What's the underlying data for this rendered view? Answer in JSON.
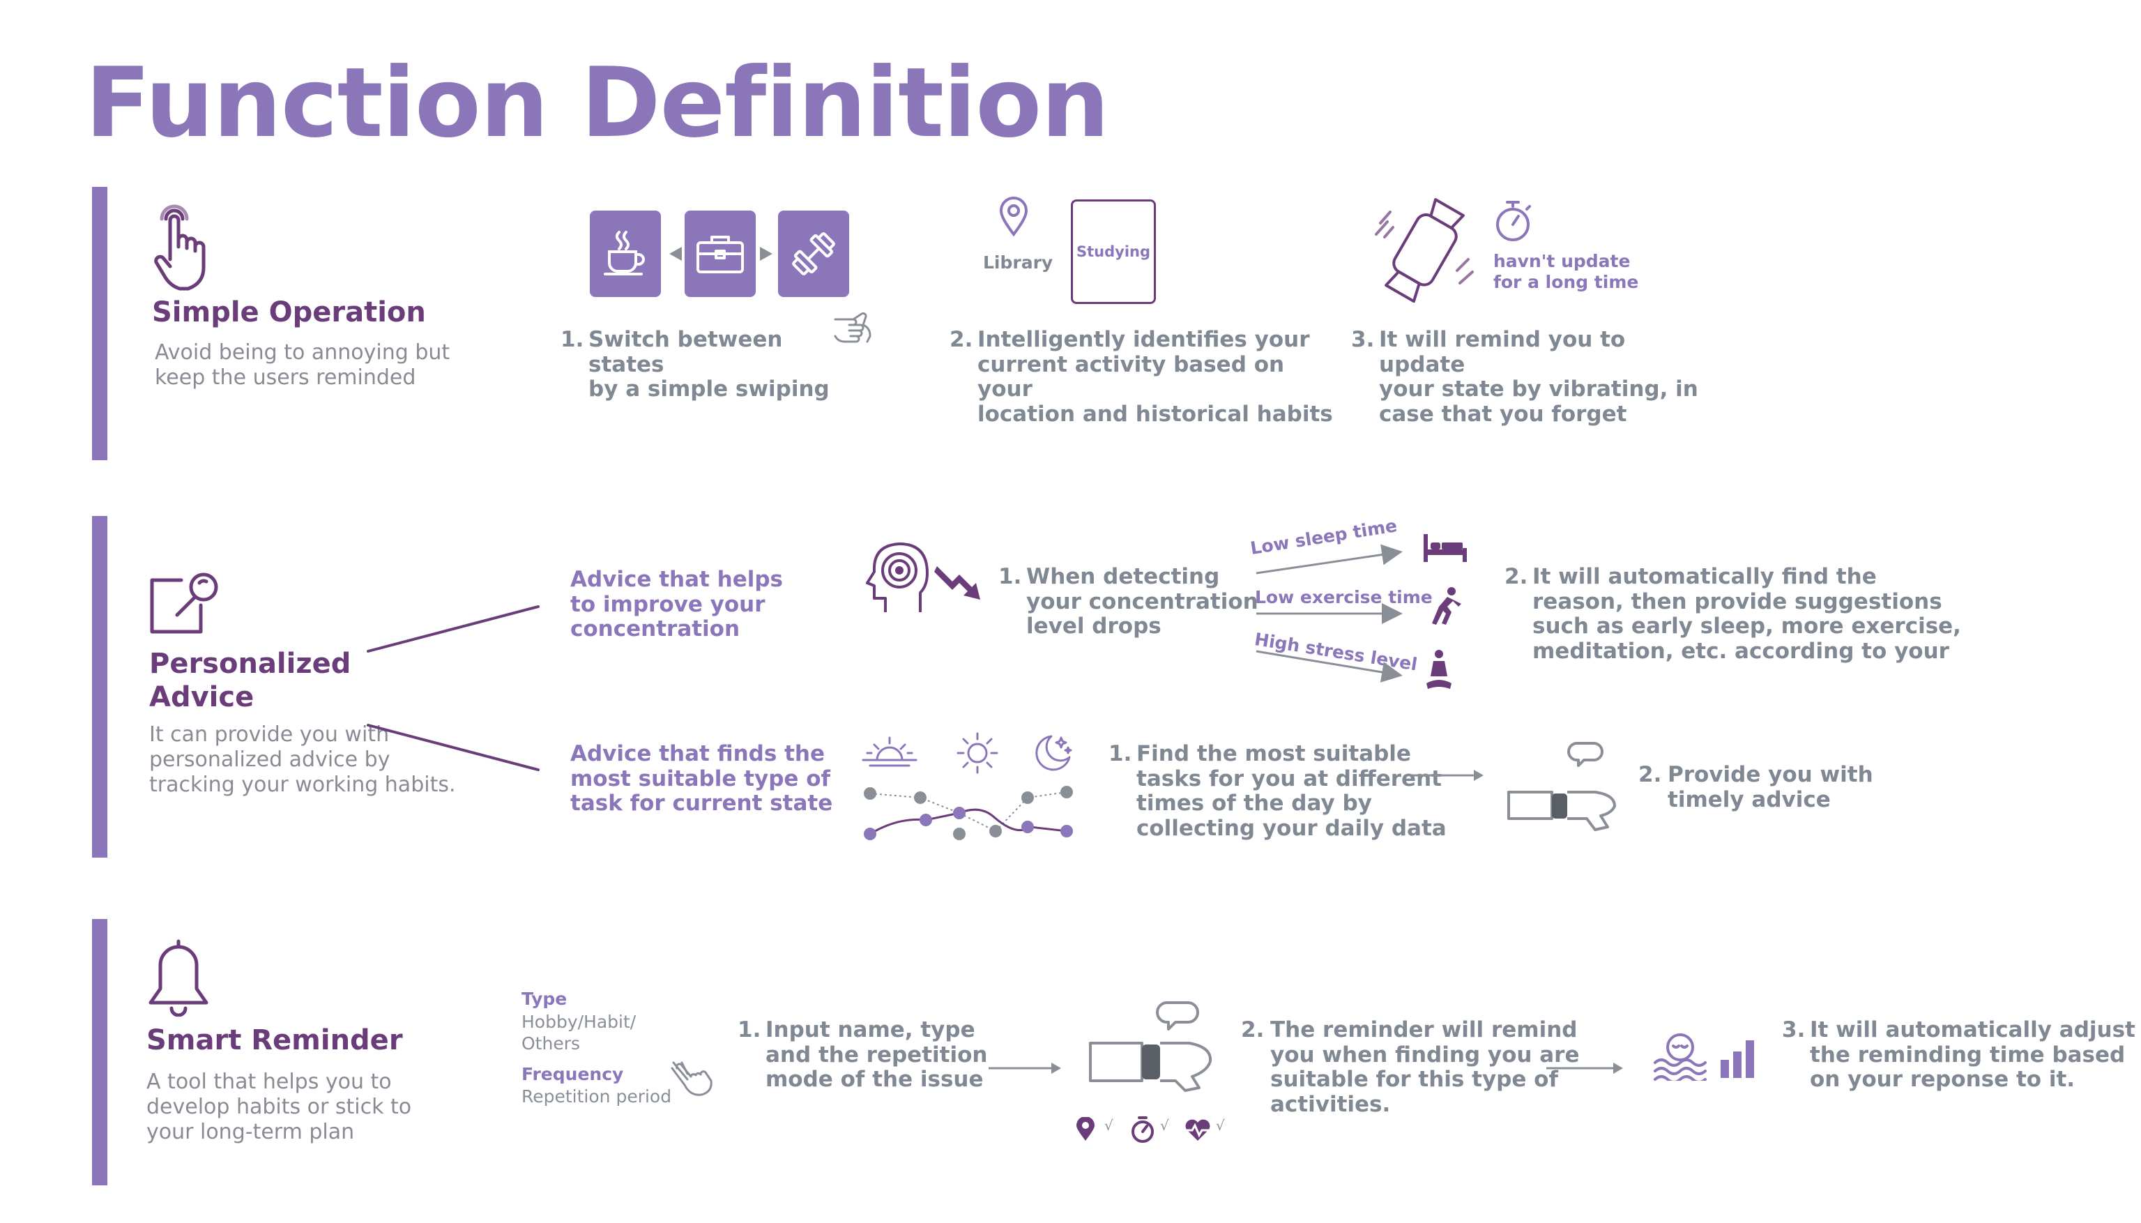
{
  "page": {
    "title": "Function Definition"
  },
  "colors": {
    "accent": "#8a76b9",
    "dark_purple": "#6a3d7a",
    "gray": "#7f8893"
  },
  "simple_operation": {
    "title": "Simple Operation",
    "description": "Avoid being to annoying but keep the users reminded",
    "step1": {
      "label": "Switch between states\nby a simple swiping"
    },
    "step2": {
      "location": "Library",
      "card": "Studying",
      "label": "Intelligently identifies your\ncurrent activity based on your\nlocation and historical habits"
    },
    "step3": {
      "note": "havn't update\nfor a long time",
      "label": "It will remind you to update\nyour state by vibrating, in\ncase that you forget"
    }
  },
  "personalized_advice": {
    "title": "Personalized\nAdvice",
    "description": "It can provide you with\npersonalized advice by\ntracking your working habits.",
    "branch_a": "Advice that helps\nto improve your\nconcentration",
    "branch_b": "Advice that finds the\nmost suitable type of\ntask for current state",
    "a_step1": "When detecting\nyour concentration\nlevel drops",
    "causes": [
      "Low sleep time",
      "Low exercise time",
      "High stress level"
    ],
    "a_step2": "It will automatically find the\nreason, then provide suggestions\nsuch as early sleep, more exercise,\nmeditation, etc. according to your",
    "b_step1": "Find the most suitable\ntasks for you at different\ntimes of the day by\ncollecting your daily data",
    "b_step2": "Provide you with\ntimely advice"
  },
  "smart_reminder": {
    "title": "Smart Reminder",
    "description": "A tool that helps you to\ndevelop habits or stick to\nyour long-term plan",
    "type_label": "Type",
    "type_value": "Hobby/Habit/\nOthers",
    "freq_label": "Frequency",
    "freq_value": "Repetition period",
    "step1": "Input name, type\nand the repetition\nmode of the issue",
    "step2": "The reminder will remind\nyou when finding you are\nsuitable for this type of\nactivities.",
    "step3": "It will automatically adjust\nthe reminding time based\non your reponse to it.",
    "checks": [
      "√",
      "√",
      "√"
    ]
  },
  "numbers": [
    "1.",
    "2.",
    "3."
  ]
}
